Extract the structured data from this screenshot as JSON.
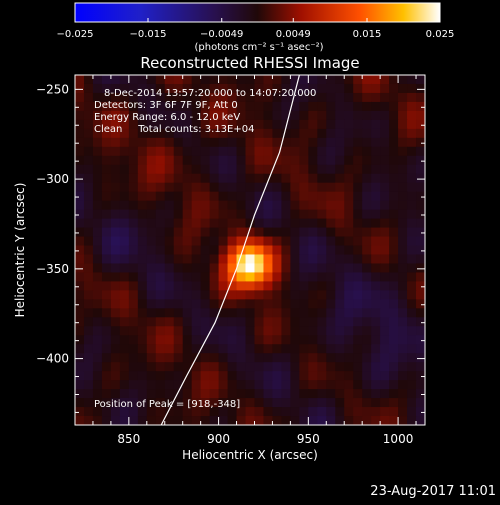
{
  "chart_data": {
    "type": "heatmap",
    "title": "Reconstructed RHESSI Image",
    "xlabel": "Heliocentric X (arcsec)",
    "ylabel": "Heliocentric Y (arcsec)",
    "xlim": [
      820,
      1015
    ],
    "ylim": [
      -437,
      -242
    ],
    "x_ticks": [
      850,
      900,
      950,
      1000
    ],
    "y_ticks": [
      -250,
      -300,
      -350,
      -400
    ],
    "colorbar": {
      "range": [
        -0.025,
        0.025
      ],
      "ticks": [
        "−0.025",
        "−0.015",
        "−0.0049",
        "0.0049",
        "0.015",
        "0.025"
      ],
      "label": "(photons cm⁻² s⁻¹ asec⁻²)"
    },
    "annotations": [
      "8-Dec-2014 13:57:20.000 to 14:07:20.000",
      "Detectors: 3F 6F 7F 9F, Att 0",
      "Energy Range: 6.0 - 12.0 keV",
      "Clean     Total counts: 3.13E+04"
    ],
    "peak": {
      "x": 918,
      "y": -348,
      "label": "Position of Peak = [918,-348]"
    },
    "limb_curve": [
      [
        868,
        -437
      ],
      [
        882,
        -410
      ],
      [
        898,
        -380
      ],
      [
        910,
        -350
      ],
      [
        920,
        -320
      ],
      [
        934,
        -285
      ],
      [
        945,
        -242
      ]
    ],
    "source_amplitude": 0.025,
    "colors": {
      "background": "#000000",
      "limb": "#ffffff"
    }
  },
  "footer": {
    "timestamp": "23-Aug-2017 11:01"
  }
}
